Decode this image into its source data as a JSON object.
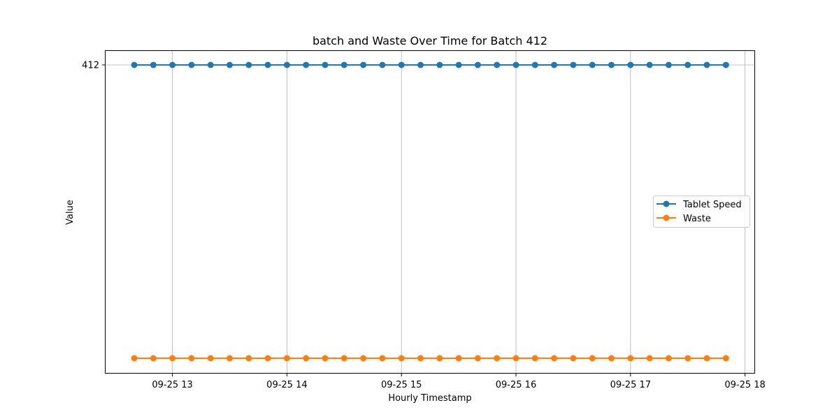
{
  "chart_data": {
    "type": "line",
    "title": "batch and Waste Over Time for Batch 412",
    "xlabel": "Hourly Timestamp",
    "ylabel": "Value",
    "x_start": "2023-09-25 12:40",
    "x_step_minutes": 10,
    "x": [
      "09-25 12:40",
      "09-25 12:50",
      "09-25 13:00",
      "09-25 13:10",
      "09-25 13:20",
      "09-25 13:30",
      "09-25 13:40",
      "09-25 13:50",
      "09-25 14:00",
      "09-25 14:10",
      "09-25 14:20",
      "09-25 14:30",
      "09-25 14:40",
      "09-25 14:50",
      "09-25 15:00",
      "09-25 15:10",
      "09-25 15:20",
      "09-25 15:30",
      "09-25 15:40",
      "09-25 15:50",
      "09-25 16:00",
      "09-25 16:10",
      "09-25 16:20",
      "09-25 16:30",
      "09-25 16:40",
      "09-25 16:50",
      "09-25 17:00",
      "09-25 17:10",
      "09-25 17:20",
      "09-25 17:30",
      "09-25 17:40",
      "09-25 17:50"
    ],
    "x_ticks": [
      "09-25 13",
      "09-25 14",
      "09-25 15",
      "09-25 16",
      "09-25 17",
      "09-25 18"
    ],
    "y_ticks": [
      "412"
    ],
    "series": [
      {
        "name": "Tablet Speed",
        "color": "#1f77b4",
        "values": [
          412,
          412,
          412,
          412,
          412,
          412,
          412,
          412,
          412,
          412,
          412,
          412,
          412,
          412,
          412,
          412,
          412,
          412,
          412,
          412,
          412,
          412,
          412,
          412,
          412,
          412,
          412,
          412,
          412,
          412,
          412,
          412
        ]
      },
      {
        "name": "Waste",
        "color": "#ff7f0e",
        "values": [
          0,
          0,
          0,
          0,
          0,
          0,
          0,
          0,
          0,
          0,
          0,
          0,
          0,
          0,
          0,
          0,
          0,
          0,
          0,
          0,
          0,
          0,
          0,
          0,
          0,
          0,
          0,
          0,
          0,
          0,
          0,
          0
        ]
      }
    ],
    "grid": true,
    "legend_position": "center-right"
  }
}
